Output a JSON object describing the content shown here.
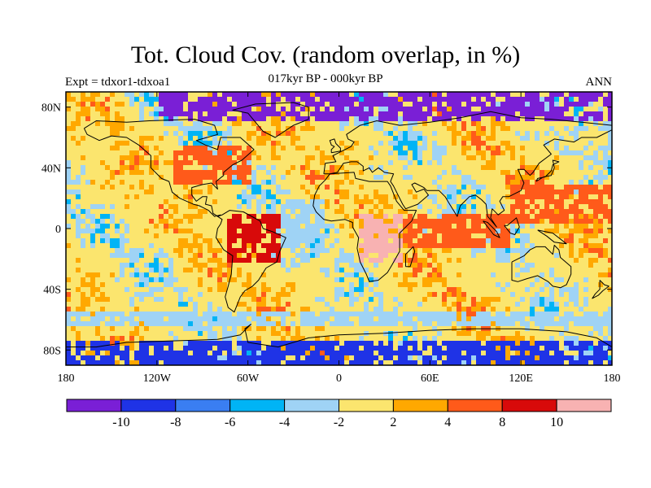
{
  "title": "Tot. Cloud Cov. (random overlap, in %)",
  "subtitle": "017kyr BP - 000kyr BP",
  "experiment": "Expt = tdxor1-tdxoa1",
  "season": "ANN",
  "map": {
    "projection": "cylindrical-equidistant",
    "lat_range": [
      -90,
      90
    ],
    "lon_range": [
      -180,
      180
    ],
    "lat_ticks": [
      {
        "lat": 80,
        "label": "80N"
      },
      {
        "lat": 40,
        "label": "40N"
      },
      {
        "lat": 0,
        "label": "0"
      },
      {
        "lat": -40,
        "label": "40S"
      },
      {
        "lat": -80,
        "label": "80S"
      }
    ],
    "lon_ticks": [
      {
        "lon": -180,
        "label": "180"
      },
      {
        "lon": -120,
        "label": "120W"
      },
      {
        "lon": -60,
        "label": "60W"
      },
      {
        "lon": 0,
        "label": "0"
      },
      {
        "lon": 60,
        "label": "60E"
      },
      {
        "lon": 120,
        "label": "120E"
      },
      {
        "lon": 180,
        "label": "180"
      }
    ],
    "field_regions": [
      {
        "name": "arctic-deficit",
        "class": 0,
        "lon": [
          -120,
          180
        ],
        "lat": [
          72,
          90
        ]
      },
      {
        "name": "north-america-gain",
        "class": 7,
        "lon": [
          -110,
          -60
        ],
        "lat": [
          32,
          55
        ]
      },
      {
        "name": "south-america-gain",
        "class": 8,
        "lon": [
          -75,
          -40
        ],
        "lat": [
          -20,
          10
        ]
      },
      {
        "name": "atlantic-decrease",
        "class": 4,
        "lon": [
          -40,
          -10
        ],
        "lat": [
          -10,
          20
        ]
      },
      {
        "name": "africa-gain",
        "class": 9,
        "lon": [
          10,
          40
        ],
        "lat": [
          -20,
          10
        ]
      },
      {
        "name": "indian-ocean-gain",
        "class": 7,
        "lon": [
          40,
          110
        ],
        "lat": [
          -10,
          10
        ]
      },
      {
        "name": "pacific-warm-pool",
        "class": 7,
        "lon": [
          110,
          180
        ],
        "lat": [
          5,
          30
        ]
      },
      {
        "name": "southern-ocean-band",
        "class": 4,
        "lon": [
          -180,
          180
        ],
        "lat": [
          -62,
          -52
        ]
      },
      {
        "name": "antarctic-margin",
        "class": 1,
        "lon": [
          -180,
          180
        ],
        "lat": [
          -90,
          -72
        ]
      }
    ]
  },
  "colorbar": {
    "colors": [
      "#7a1fd6",
      "#1f33e6",
      "#3a7ef2",
      "#00b4f5",
      "#9fd3f5",
      "#fbe56e",
      "#ffa800",
      "#ff5a1a",
      "#d80a0a",
      "#f8b2b2"
    ],
    "labels": [
      "-10",
      "-8",
      "-6",
      "-4",
      "-2",
      "2",
      "4",
      "8",
      "10"
    ]
  },
  "colors": {
    "coastline": "#000000",
    "frame": "#000000"
  }
}
